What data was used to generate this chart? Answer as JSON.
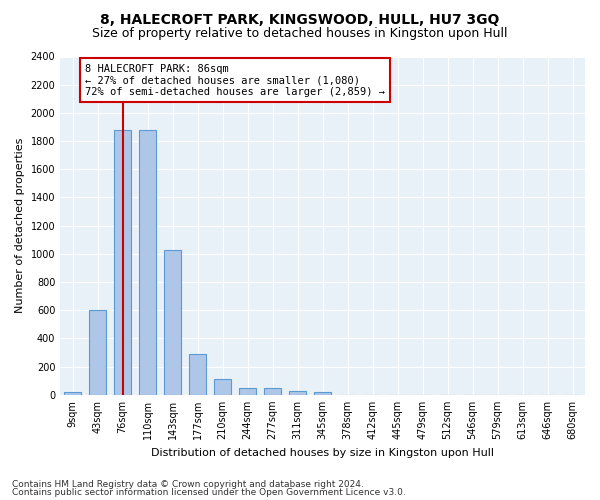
{
  "title": "8, HALECROFT PARK, KINGSWOOD, HULL, HU7 3GQ",
  "subtitle": "Size of property relative to detached houses in Kingston upon Hull",
  "xlabel": "Distribution of detached houses by size in Kingston upon Hull",
  "ylabel": "Number of detached properties",
  "footnote1": "Contains HM Land Registry data © Crown copyright and database right 2024.",
  "footnote2": "Contains public sector information licensed under the Open Government Licence v3.0.",
  "bin_labels": [
    "9sqm",
    "43sqm",
    "76sqm",
    "110sqm",
    "143sqm",
    "177sqm",
    "210sqm",
    "244sqm",
    "277sqm",
    "311sqm",
    "345sqm",
    "378sqm",
    "412sqm",
    "445sqm",
    "479sqm",
    "512sqm",
    "546sqm",
    "579sqm",
    "613sqm",
    "646sqm",
    "680sqm"
  ],
  "bar_values": [
    20,
    600,
    1880,
    1880,
    1030,
    290,
    115,
    50,
    50,
    30,
    20,
    0,
    0,
    0,
    0,
    0,
    0,
    0,
    0,
    0,
    0
  ],
  "bar_color": "#aec6e8",
  "bar_edge_color": "#5b9bd5",
  "vline_x_index": 2,
  "vline_color": "#cc0000",
  "ylim": [
    0,
    2400
  ],
  "yticks": [
    0,
    200,
    400,
    600,
    800,
    1000,
    1200,
    1400,
    1600,
    1800,
    2000,
    2200,
    2400
  ],
  "annotation_line1": "8 HALECROFT PARK: 86sqm",
  "annotation_line2": "← 27% of detached houses are smaller (1,080)",
  "annotation_line3": "72% of semi-detached houses are larger (2,859) →",
  "annotation_box_color": "#cc0000",
  "bg_color": "#e8f0f8",
  "grid_color": "#ffffff",
  "title_fontsize": 10,
  "subtitle_fontsize": 9,
  "axis_label_fontsize": 8,
  "tick_fontsize": 7,
  "annotation_fontsize": 7.5,
  "footnote_fontsize": 6.5,
  "bar_width": 0.7
}
